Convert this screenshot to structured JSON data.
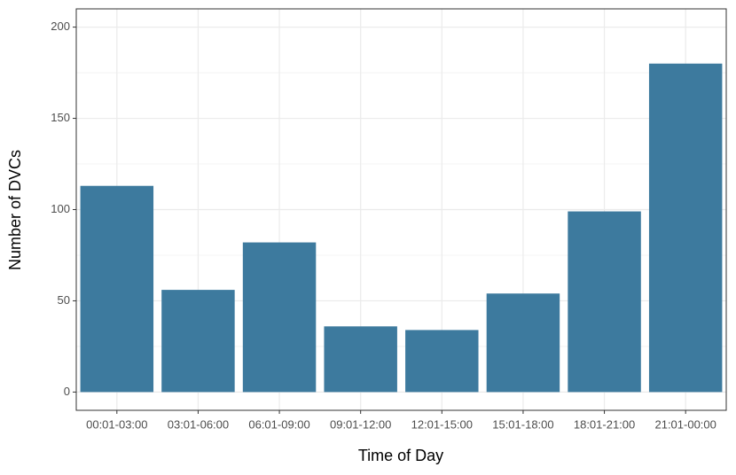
{
  "chart_data": {
    "type": "bar",
    "x_label": "Time of Day",
    "y_label": "Number of DVCs",
    "categories": [
      "00:01-03:00",
      "03:01-06:00",
      "06:01-09:00",
      "09:01-12:00",
      "12:01-15:00",
      "15:01-18:00",
      "18:01-21:00",
      "21:01-00:00"
    ],
    "values": [
      113,
      56,
      82,
      36,
      34,
      54,
      99,
      180
    ],
    "color": "#3d7a9e",
    "ylim": [
      -10,
      210
    ],
    "yticks": [
      0,
      50,
      100,
      150,
      200
    ],
    "minor_yticks": [
      25,
      75,
      125,
      175
    ],
    "grid": true
  }
}
